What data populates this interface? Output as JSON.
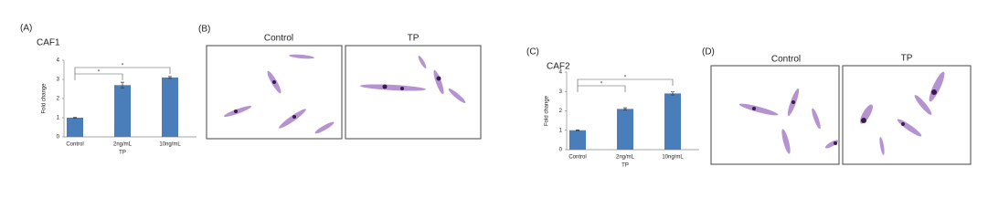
{
  "chart_data": [
    {
      "type": "bar",
      "title": "CAF1",
      "categories": [
        "Control",
        "2ng/mL",
        "10ng/mL"
      ],
      "values": [
        1,
        2.7,
        3.1
      ],
      "errors": [
        0.02,
        0.15,
        0.05
      ],
      "color": "#4a7ebb",
      "ylim": [
        0,
        4
      ],
      "yticks": [
        0,
        1,
        2,
        3,
        4
      ],
      "y_label": "Fold change",
      "x_label": "TP",
      "annotations": [
        "*",
        "*"
      ]
    },
    {
      "type": "bar",
      "title": "CAF2",
      "categories": [
        "Control",
        "2ng/mL",
        "10ng/mL"
      ],
      "values": [
        1,
        2.1,
        2.9
      ],
      "errors": [
        0.02,
        0.06,
        0.08
      ],
      "color": "#4a7ebb",
      "ylim": [
        0,
        4
      ],
      "yticks": [
        0,
        1,
        2,
        3,
        4
      ],
      "y_label": "Fold change",
      "x_label": "TP",
      "annotations": [
        "*",
        "*"
      ]
    }
  ],
  "panels": {
    "a": "(A)",
    "b": "(B)",
    "c": "(C)",
    "d": "(D)",
    "b_left": "Control",
    "b_right": "TP",
    "d_left": "Control",
    "d_right": "TP"
  }
}
